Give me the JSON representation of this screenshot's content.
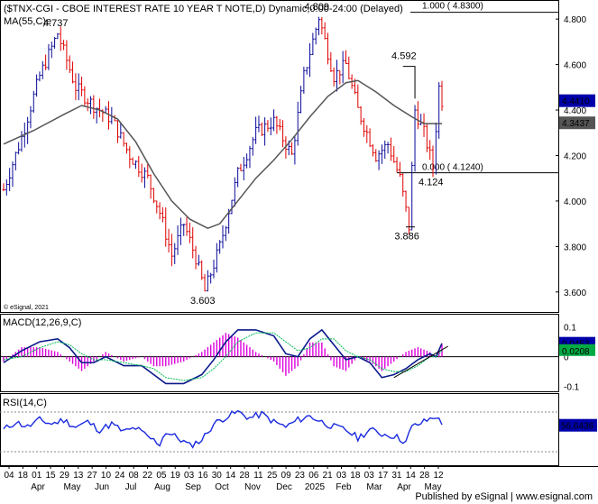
{
  "header": {
    "title": "($TNX-CGI - CBOE INTEREST RATE 10 YEAR T NOTE,D) Dynamic,0:00-24:00 (Delayed)",
    "ma_label": "MA(55,C)e",
    "copyright": "© eSignal, 2021"
  },
  "footer": {
    "published": "Published by eSignal | www.esignal.com"
  },
  "chart_data": [
    {
      "type": "bar",
      "ohlc_style": true,
      "y_axis_ticks": [
        3.6,
        3.8,
        4.0,
        4.2,
        4.4,
        4.6,
        4.8
      ],
      "y_axis_tick_labels": [
        "3.600",
        "3.800",
        "4.000",
        "4.200",
        "4.400",
        "4.600",
        "4.800"
      ],
      "ylim": [
        3.52,
        4.86
      ],
      "price_tags": [
        {
          "label": "4.4410",
          "value": 4.441,
          "bg": "#0000aa"
        },
        {
          "label": "4.3437",
          "value": 4.3437,
          "bg": "#555555"
        }
      ],
      "annotations": [
        {
          "text": "4.737",
          "value": 4.737,
          "index": 18
        },
        {
          "text": "4.809",
          "value": 4.809,
          "index": 105
        },
        {
          "text": "4.592",
          "value": 4.592,
          "index": 134
        },
        {
          "text": "3.603",
          "value": 3.603,
          "index": 67
        },
        {
          "text": "4.124",
          "value": 4.124,
          "index": 143
        },
        {
          "text": "3.886",
          "value": 3.886,
          "index": 135
        }
      ],
      "fib_lines": [
        {
          "label": "1.000 ( 4.8300)",
          "value": 4.83
        },
        {
          "label": "0.000 ( 4.1240)",
          "value": 4.124
        }
      ],
      "series": [
        {
          "name": "MA(55,C)e",
          "points": [
            [
              0,
              4.25
            ],
            [
              10,
              4.31
            ],
            [
              20,
              4.38
            ],
            [
              26,
              4.42
            ],
            [
              32,
              4.4
            ],
            [
              38,
              4.36
            ],
            [
              44,
              4.26
            ],
            [
              50,
              4.12
            ],
            [
              56,
              4.0
            ],
            [
              62,
              3.92
            ],
            [
              68,
              3.88
            ],
            [
              72,
              3.9
            ],
            [
              78,
              4.0
            ],
            [
              84,
              4.1
            ],
            [
              90,
              4.18
            ],
            [
              96,
              4.27
            ],
            [
              102,
              4.37
            ],
            [
              108,
              4.46
            ],
            [
              114,
              4.52
            ],
            [
              118,
              4.53
            ],
            [
              124,
              4.48
            ],
            [
              130,
              4.42
            ],
            [
              136,
              4.37
            ],
            [
              140,
              4.34
            ],
            [
              146,
              4.34
            ]
          ],
          "color": "#555555"
        }
      ]
    },
    {
      "type": "line",
      "name": "MACD(12,26,9,C)",
      "y_axis_ticks": [
        0.1,
        0,
        -0.1
      ],
      "y_axis_tick_labels": [
        "0.1",
        "0",
        "-0.1"
      ],
      "ylim": [
        -0.11,
        0.12
      ],
      "price_tags": [
        {
          "label": "0.0453",
          "value": 0.0453,
          "bg": "#0000aa"
        },
        {
          "label": "0.0208",
          "value": 0.0208,
          "bg": "#00aa44"
        }
      ],
      "series": [
        {
          "name": "MACD",
          "color": "#0a1a8a",
          "points": [
            [
              0,
              -0.02
            ],
            [
              6,
              0.02
            ],
            [
              12,
              0.05
            ],
            [
              18,
              0.06
            ],
            [
              22,
              0.03
            ],
            [
              26,
              -0.02
            ],
            [
              30,
              -0.02
            ],
            [
              34,
              0.0
            ],
            [
              40,
              -0.03
            ],
            [
              46,
              -0.03
            ],
            [
              50,
              -0.06
            ],
            [
              54,
              -0.09
            ],
            [
              60,
              -0.09
            ],
            [
              66,
              -0.06
            ],
            [
              70,
              -0.01
            ],
            [
              74,
              0.05
            ],
            [
              78,
              0.09
            ],
            [
              84,
              0.09
            ],
            [
              90,
              0.07
            ],
            [
              94,
              0.01
            ],
            [
              98,
              0.0
            ],
            [
              102,
              0.06
            ],
            [
              106,
              0.09
            ],
            [
              110,
              0.04
            ],
            [
              114,
              -0.01
            ],
            [
              118,
              0.0
            ],
            [
              122,
              -0.02
            ],
            [
              126,
              -0.07
            ],
            [
              130,
              -0.06
            ],
            [
              134,
              -0.04
            ],
            [
              138,
              -0.01
            ],
            [
              142,
              0.01
            ],
            [
              144,
              0.0
            ],
            [
              146,
              0.045
            ]
          ]
        },
        {
          "name": "Signal",
          "color": "#00bb55",
          "points": [
            [
              0,
              -0.01
            ],
            [
              6,
              0.0
            ],
            [
              12,
              0.03
            ],
            [
              18,
              0.05
            ],
            [
              22,
              0.04
            ],
            [
              26,
              0.01
            ],
            [
              30,
              -0.01
            ],
            [
              34,
              -0.01
            ],
            [
              40,
              -0.02
            ],
            [
              46,
              -0.03
            ],
            [
              50,
              -0.04
            ],
            [
              54,
              -0.07
            ],
            [
              60,
              -0.08
            ],
            [
              66,
              -0.07
            ],
            [
              70,
              -0.04
            ],
            [
              74,
              0.0
            ],
            [
              78,
              0.05
            ],
            [
              84,
              0.08
            ],
            [
              90,
              0.08
            ],
            [
              94,
              0.05
            ],
            [
              98,
              0.02
            ],
            [
              102,
              0.03
            ],
            [
              106,
              0.06
            ],
            [
              110,
              0.06
            ],
            [
              114,
              0.02
            ],
            [
              118,
              0.0
            ],
            [
              122,
              -0.01
            ],
            [
              126,
              -0.04
            ],
            [
              130,
              -0.05
            ],
            [
              134,
              -0.05
            ],
            [
              138,
              -0.03
            ],
            [
              142,
              0.0
            ],
            [
              144,
              0.0
            ],
            [
              146,
              0.02
            ]
          ]
        }
      ],
      "histogram_color": "#dd00dd"
    },
    {
      "type": "line",
      "name": "RSI(14,C)",
      "ylim": [
        20,
        80
      ],
      "price_tags": [
        {
          "label": "56.6436",
          "value": 56.6436,
          "bg": "#0000aa"
        }
      ],
      "series": [
        {
          "name": "RSI",
          "color": "#1a2adf",
          "points": [
            [
              0,
              52
            ],
            [
              4,
              60
            ],
            [
              8,
              55
            ],
            [
              12,
              62
            ],
            [
              16,
              58
            ],
            [
              20,
              62
            ],
            [
              24,
              55
            ],
            [
              28,
              60
            ],
            [
              32,
              52
            ],
            [
              36,
              58
            ],
            [
              40,
              50
            ],
            [
              44,
              54
            ],
            [
              48,
              45
            ],
            [
              52,
              38
            ],
            [
              54,
              50
            ],
            [
              58,
              44
            ],
            [
              62,
              36
            ],
            [
              66,
              42
            ],
            [
              70,
              58
            ],
            [
              74,
              65
            ],
            [
              78,
              70
            ],
            [
              82,
              64
            ],
            [
              86,
              68
            ],
            [
              90,
              60
            ],
            [
              94,
              55
            ],
            [
              98,
              62
            ],
            [
              102,
              66
            ],
            [
              106,
              60
            ],
            [
              110,
              55
            ],
            [
              114,
              52
            ],
            [
              118,
              44
            ],
            [
              122,
              52
            ],
            [
              126,
              48
            ],
            [
              130,
              46
            ],
            [
              134,
              40
            ],
            [
              136,
              55
            ],
            [
              140,
              60
            ],
            [
              144,
              66
            ],
            [
              146,
              57
            ]
          ]
        }
      ]
    }
  ],
  "x_axis": {
    "day_labels": [
      "04",
      "18",
      "01",
      "15",
      "29",
      "13",
      "27",
      "10",
      "24",
      "08",
      "22",
      "05",
      "19",
      "03",
      "16",
      "30",
      "14",
      "28",
      "11",
      "25",
      "09",
      "23",
      "06",
      "21",
      "03",
      "18",
      "03",
      "17",
      "31",
      "14",
      "28",
      "12"
    ],
    "month_labels": [
      "Apr",
      "May",
      "Jun",
      "Jul",
      "Aug",
      "Sep",
      "Oct",
      "Nov",
      "Dec",
      "2025",
      "Feb",
      "Mar",
      "Apr",
      "May"
    ]
  }
}
